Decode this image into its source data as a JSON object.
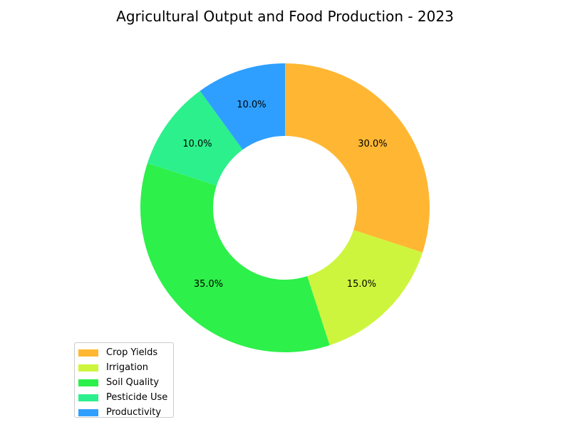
{
  "chart_data": {
    "type": "pie",
    "donut": true,
    "title": "Agricultural Output and Food Production - 2023",
    "categories": [
      "Crop Yields",
      "Irrigation",
      "Soil Quality",
      "Pesticide Use",
      "Productivity"
    ],
    "values": [
      30,
      15,
      35,
      10,
      10
    ],
    "percent_labels": [
      "30.0%",
      "15.0%",
      "35.0%",
      "10.0%",
      "10.0%"
    ],
    "colors": [
      "#FFB733",
      "#CEF53D",
      "#2DF04A",
      "#2CF08C",
      "#2E9FFF"
    ],
    "start_angle_deg": 90,
    "direction": "clockwise",
    "legend_position": "lower-left"
  }
}
